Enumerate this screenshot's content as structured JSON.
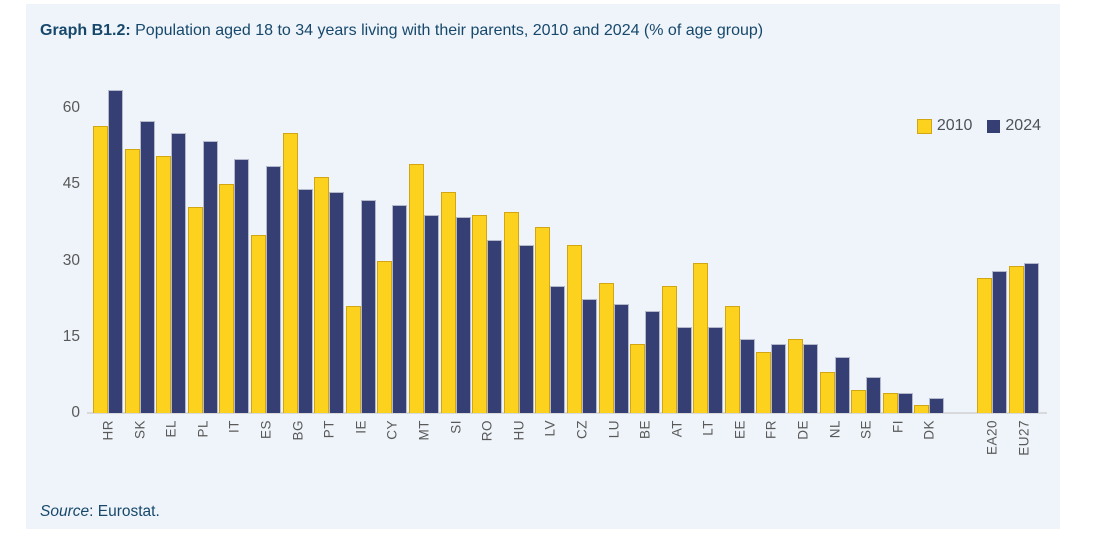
{
  "header": {
    "title_prefix": "Graph B1.2:",
    "title_rest": " Population aged 18 to 34 years living with their parents, 2010 and 2024 (% of age group)"
  },
  "source": {
    "word": "Source",
    "rest": ": Eurostat."
  },
  "colors": {
    "panel_bg": "#eef4fa",
    "title_text": "#17486b",
    "axis_text": "#595959",
    "legend_text": "#4d5257",
    "axis_line": "#d8d9db",
    "bar_2010_fill": "#fdd21f",
    "bar_2010_border": "#d2a513",
    "bar_2024_fill": "#363f73",
    "bar_2024_border": "#b4b9cc"
  },
  "chart_data": {
    "type": "bar",
    "title": "Population aged 18 to 34 years living with their parents, 2010 and 2024 (% of age group)",
    "xlabel": "",
    "ylabel": "",
    "ylim": [
      0,
      60
    ],
    "yticks": [
      0,
      15,
      30,
      45,
      60
    ],
    "grid": false,
    "legend_position": "top-right",
    "gap_before_category": "EA20",
    "categories": [
      "HR",
      "SK",
      "EL",
      "PL",
      "IT",
      "ES",
      "BG",
      "PT",
      "IE",
      "CY",
      "MT",
      "SI",
      "RO",
      "HU",
      "LV",
      "CZ",
      "LU",
      "BE",
      "AT",
      "LT",
      "EE",
      "FR",
      "DE",
      "NL",
      "SE",
      "FI",
      "DK",
      "EA20",
      "EU27"
    ],
    "series": [
      {
        "name": "2010",
        "values": [
          56.5,
          52,
          50.5,
          40.5,
          45,
          35,
          55,
          46.5,
          21,
          30,
          49,
          43.5,
          39,
          39.5,
          36.5,
          33,
          25.5,
          13.5,
          25,
          29.5,
          21,
          12,
          14.5,
          8,
          4.5,
          4,
          1.5,
          26.5,
          29
        ]
      },
      {
        "name": "2024",
        "values": [
          63.5,
          57.5,
          55,
          53.5,
          50,
          48.5,
          44,
          43.5,
          42,
          41,
          39,
          38.5,
          34,
          33,
          25,
          22.5,
          21.5,
          20,
          17,
          17,
          14.5,
          13.5,
          13.5,
          11,
          7,
          4,
          3,
          28,
          29.5
        ]
      }
    ]
  }
}
